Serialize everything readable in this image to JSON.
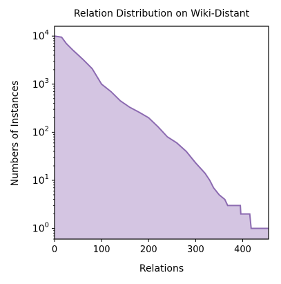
{
  "chart_data": {
    "type": "area",
    "title": "Relation Distribution on Wiki-Distant",
    "xlabel": "Relations",
    "ylabel": "Numbers of Instances",
    "xlim": [
      0,
      455
    ],
    "ylim": [
      0.6,
      16000
    ],
    "yscale": "log",
    "grid": false,
    "x_ticks": [
      {
        "value": 0,
        "label": "0"
      },
      {
        "value": 100,
        "label": "100"
      },
      {
        "value": 200,
        "label": "200"
      },
      {
        "value": 300,
        "label": "300"
      },
      {
        "value": 400,
        "label": "400"
      }
    ],
    "y_ticks": [
      {
        "value": 1,
        "base": "10",
        "exp": "0"
      },
      {
        "value": 10,
        "base": "10",
        "exp": "1"
      },
      {
        "value": 100,
        "base": "10",
        "exp": "2"
      },
      {
        "value": 1000,
        "base": "10",
        "exp": "3"
      },
      {
        "value": 10000,
        "base": "10",
        "exp": "4"
      }
    ],
    "series": [
      {
        "color": "#8c6bb1",
        "fill": "#d4c5e2",
        "x": [
          0,
          15,
          25,
          40,
          60,
          80,
          100,
          120,
          140,
          160,
          180,
          200,
          220,
          240,
          260,
          280,
          300,
          320,
          330,
          338,
          350,
          362,
          368,
          380,
          382,
          395,
          396,
          415,
          418,
          455
        ],
        "y": [
          10000,
          9500,
          7000,
          5000,
          3300,
          2100,
          1000,
          700,
          450,
          330,
          260,
          200,
          130,
          80,
          60,
          40,
          23,
          14,
          10,
          7,
          5,
          4,
          3,
          3,
          3,
          3,
          2,
          2,
          1,
          1
        ]
      }
    ]
  }
}
